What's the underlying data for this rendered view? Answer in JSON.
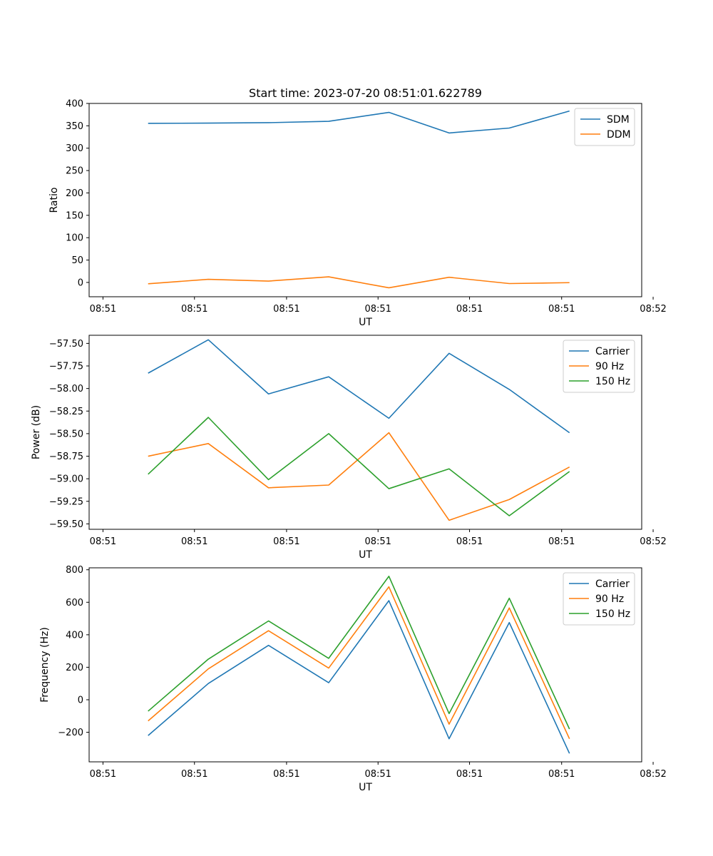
{
  "chart_data": [
    {
      "type": "line",
      "title": "Start time: 2023-07-20 08:51:01.622789",
      "xlabel": "UT",
      "ylabel": "Ratio",
      "grid": false,
      "legend_position": "top-right",
      "xlim": [
        -0.23,
        8.95
      ],
      "ylim": [
        -32,
        400
      ],
      "x_ticks": [
        0,
        1.52,
        3.05,
        4.57,
        6.09,
        7.62,
        9.14
      ],
      "x_tick_labels": [
        "08:51",
        "08:51",
        "08:51",
        "08:51",
        "08:51",
        "08:51",
        "08:52"
      ],
      "y_ticks": [
        0,
        50,
        100,
        150,
        200,
        250,
        300,
        350,
        400
      ],
      "y_tick_labels": [
        "0",
        "50",
        "100",
        "150",
        "200",
        "250",
        "300",
        "350",
        "400"
      ],
      "x": [
        0.75,
        1.75,
        2.75,
        3.75,
        4.75,
        5.75,
        6.75,
        7.75
      ],
      "series": [
        {
          "name": "SDM",
          "color": "#1f77b4",
          "values": [
            355.5,
            356,
            357,
            360,
            380,
            334,
            345,
            383
          ]
        },
        {
          "name": "DDM",
          "color": "#ff7f0e",
          "values": [
            -3,
            7,
            3,
            12.5,
            -12,
            11.5,
            -2.5,
            -0.5
          ]
        }
      ]
    },
    {
      "type": "line",
      "title": "",
      "xlabel": "UT",
      "ylabel": "Power (dB)",
      "grid": false,
      "legend_position": "top-right",
      "xlim": [
        -0.23,
        8.95
      ],
      "ylim": [
        -59.56,
        -57.41
      ],
      "x_ticks": [
        0,
        1.52,
        3.05,
        4.57,
        6.09,
        7.62,
        9.14
      ],
      "x_tick_labels": [
        "08:51",
        "08:51",
        "08:51",
        "08:51",
        "08:51",
        "08:51",
        "08:52"
      ],
      "y_ticks": [
        -59.5,
        -59.25,
        -59.0,
        -58.75,
        -58.5,
        -58.25,
        -58.0,
        -57.75,
        -57.5
      ],
      "y_tick_labels": [
        "−59.50",
        "−59.25",
        "−59.00",
        "−58.75",
        "−58.50",
        "−58.25",
        "−58.00",
        "−57.75",
        "−57.50"
      ],
      "x": [
        0.75,
        1.75,
        2.75,
        3.75,
        4.75,
        5.75,
        6.75,
        7.75
      ],
      "series": [
        {
          "name": "Carrier",
          "color": "#1f77b4",
          "values": [
            -57.83,
            -57.46,
            -58.06,
            -57.87,
            -58.33,
            -57.61,
            -58.01,
            -58.49
          ]
        },
        {
          "name": "90 Hz",
          "color": "#ff7f0e",
          "values": [
            -58.75,
            -58.61,
            -59.1,
            -59.07,
            -58.49,
            -59.46,
            -59.23,
            -58.87
          ]
        },
        {
          "name": "150 Hz",
          "color": "#2ca02c",
          "values": [
            -58.95,
            -58.32,
            -59.01,
            -58.5,
            -59.11,
            -58.89,
            -59.41,
            -58.92
          ]
        }
      ]
    },
    {
      "type": "line",
      "title": "",
      "xlabel": "UT",
      "ylabel": "Frequency (Hz)",
      "grid": false,
      "legend_position": "top-right",
      "xlim": [
        -0.23,
        8.95
      ],
      "ylim": [
        -382,
        812
      ],
      "x_ticks": [
        0,
        1.52,
        3.05,
        4.57,
        6.09,
        7.62,
        9.14
      ],
      "x_tick_labels": [
        "08:51",
        "08:51",
        "08:51",
        "08:51",
        "08:51",
        "08:51",
        "08:52"
      ],
      "y_ticks": [
        -200,
        0,
        200,
        400,
        600,
        800
      ],
      "y_tick_labels": [
        "−200",
        "0",
        "200",
        "400",
        "600",
        "800"
      ],
      "x": [
        0.75,
        1.75,
        2.75,
        3.75,
        4.75,
        5.75,
        6.75,
        7.75
      ],
      "series": [
        {
          "name": "Carrier",
          "color": "#1f77b4",
          "values": [
            -220,
            100,
            335,
            105,
            610,
            -240,
            475,
            -330
          ]
        },
        {
          "name": "90 Hz",
          "color": "#ff7f0e",
          "values": [
            -130,
            190,
            425,
            195,
            695,
            -150,
            565,
            -240
          ]
        },
        {
          "name": "150 Hz",
          "color": "#2ca02c",
          "values": [
            -70,
            250,
            485,
            255,
            760,
            -85,
            625,
            -180
          ]
        }
      ]
    }
  ]
}
